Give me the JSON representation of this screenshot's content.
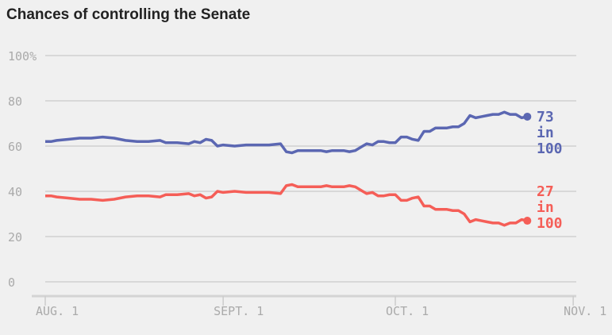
{
  "chart_data": {
    "type": "line",
    "title": "Chances of controlling the Senate",
    "year_note": "",
    "ylim": [
      0,
      100
    ],
    "yticks": [
      "0",
      "20",
      "40",
      "60",
      "80",
      "100%"
    ],
    "ytick_values": [
      0,
      20,
      40,
      60,
      80,
      100
    ],
    "xticks": [
      "AUG. 1",
      "SEPT. 1",
      "OCT. 1",
      "NOV. 1"
    ],
    "xtick_dates": [
      "08-01",
      "09-01",
      "10-01",
      "11-01"
    ],
    "grid": true,
    "colors": {
      "blue": "#5b67b2",
      "red": "#f55e57"
    },
    "dates": [
      "08-01",
      "08-02",
      "08-03",
      "08-05",
      "08-07",
      "08-09",
      "08-11",
      "08-13",
      "08-15",
      "08-17",
      "08-19",
      "08-21",
      "08-22",
      "08-24",
      "08-26",
      "08-27",
      "08-28",
      "08-29",
      "08-30",
      "08-31",
      "09-01",
      "09-03",
      "09-05",
      "09-07",
      "09-09",
      "09-11",
      "09-12",
      "09-13",
      "09-14",
      "09-16",
      "09-18",
      "09-19",
      "09-20",
      "09-22",
      "09-23",
      "09-24",
      "09-25",
      "09-26",
      "09-27",
      "09-28",
      "09-29",
      "09-30",
      "10-01",
      "10-02",
      "10-03",
      "10-04",
      "10-05",
      "10-06",
      "10-07",
      "10-08",
      "10-10",
      "10-11",
      "10-12",
      "10-13",
      "10-14",
      "10-15",
      "10-16",
      "10-17",
      "10-18",
      "10-19",
      "10-20",
      "10-21",
      "10-22",
      "10-23",
      "10-24"
    ],
    "series": [
      {
        "color": "blue",
        "values": [
          62,
          62,
          62.5,
          63,
          63.5,
          63.5,
          64,
          63.5,
          62.5,
          62,
          62,
          62.5,
          61.5,
          61.5,
          61,
          62,
          61.5,
          63,
          62.5,
          60,
          60.5,
          60,
          60.5,
          60.5,
          60.5,
          61,
          57.5,
          57,
          58,
          58,
          58,
          57.5,
          58,
          58,
          57.5,
          58,
          59.5,
          61,
          60.5,
          62,
          62,
          61.5,
          61.5,
          64,
          64,
          63,
          62.5,
          66.5,
          66.5,
          68,
          68,
          68.5,
          68.5,
          70,
          73.5,
          72.5,
          73,
          73.5,
          74,
          74,
          75,
          74,
          74,
          72.5,
          73
        ],
        "end_label": [
          "73",
          "in",
          "100"
        ]
      },
      {
        "color": "red",
        "values": [
          38,
          38,
          37.5,
          37,
          36.5,
          36.5,
          36,
          36.5,
          37.5,
          38,
          38,
          37.5,
          38.5,
          38.5,
          39,
          38,
          38.5,
          37,
          37.5,
          40,
          39.5,
          40,
          39.5,
          39.5,
          39.5,
          39,
          42.5,
          43,
          42,
          42,
          42,
          42.5,
          42,
          42,
          42.5,
          42,
          40.5,
          39,
          39.5,
          38,
          38,
          38.5,
          38.5,
          36,
          36,
          37,
          37.5,
          33.5,
          33.5,
          32,
          32,
          31.5,
          31.5,
          30,
          26.5,
          27.5,
          27,
          26.5,
          26,
          26,
          25,
          26,
          26,
          27.5,
          27
        ],
        "end_label": [
          "27",
          "in",
          "100"
        ]
      }
    ]
  }
}
